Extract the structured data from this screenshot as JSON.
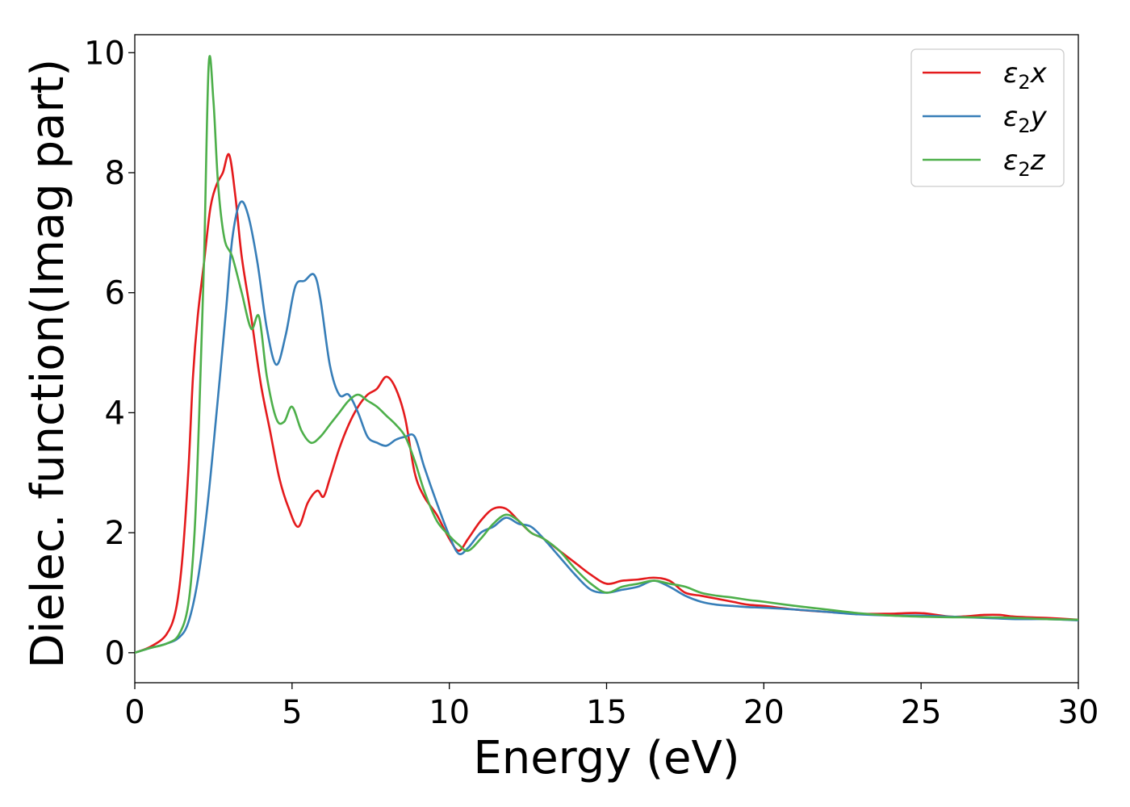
{
  "chart_data": {
    "type": "line",
    "title": "",
    "xlabel": "Energy (eV)",
    "ylabel": "Dielec. function(Imag part)",
    "xlim": [
      0,
      30
    ],
    "ylim": [
      -0.5,
      10.3
    ],
    "xticks": [
      0,
      5,
      10,
      15,
      20,
      25,
      30
    ],
    "yticks": [
      0,
      2,
      4,
      6,
      8,
      10
    ],
    "xtick_labels": [
      "0",
      "5",
      "10",
      "15",
      "20",
      "25",
      "30"
    ],
    "ytick_labels": [
      "0",
      "2",
      "4",
      "6",
      "8",
      "10"
    ],
    "grid": false,
    "legend_position": "top-right",
    "series": [
      {
        "name": "ε2x",
        "label_base": "ε",
        "label_sub": "2",
        "label_var": "x",
        "color": "#e41a1c",
        "x": [
          0,
          0.5,
          1.0,
          1.3,
          1.5,
          1.7,
          1.85,
          2.0,
          2.2,
          2.4,
          2.6,
          2.8,
          3.0,
          3.2,
          3.4,
          3.7,
          4.0,
          4.3,
          4.6,
          4.9,
          5.2,
          5.5,
          5.8,
          6.0,
          6.2,
          6.5,
          6.8,
          7.1,
          7.4,
          7.7,
          8.0,
          8.3,
          8.6,
          8.9,
          9.2,
          9.6,
          10.0,
          10.3,
          10.6,
          11.0,
          11.4,
          11.8,
          12.2,
          12.6,
          13.0,
          13.5,
          14.0,
          14.5,
          15.0,
          15.5,
          16.0,
          16.5,
          17.0,
          17.5,
          18.0,
          18.5,
          19.0,
          19.5,
          20.0,
          21.0,
          22.0,
          23.0,
          24.0,
          25.0,
          26.0,
          27.0,
          27.5,
          28.0,
          29.0,
          30.0
        ],
        "y": [
          0,
          0.1,
          0.3,
          0.7,
          1.5,
          3.0,
          4.6,
          5.6,
          6.5,
          7.4,
          7.8,
          8.0,
          8.3,
          7.6,
          6.6,
          5.6,
          4.5,
          3.7,
          2.9,
          2.4,
          2.1,
          2.5,
          2.7,
          2.6,
          2.9,
          3.4,
          3.8,
          4.1,
          4.3,
          4.4,
          4.6,
          4.4,
          3.9,
          3.0,
          2.6,
          2.3,
          1.9,
          1.7,
          1.9,
          2.2,
          2.4,
          2.4,
          2.2,
          2.0,
          1.9,
          1.7,
          1.5,
          1.3,
          1.15,
          1.2,
          1.22,
          1.25,
          1.2,
          1.0,
          0.95,
          0.9,
          0.85,
          0.8,
          0.78,
          0.72,
          0.68,
          0.65,
          0.65,
          0.66,
          0.6,
          0.63,
          0.63,
          0.6,
          0.58,
          0.55
        ]
      },
      {
        "name": "ε2y",
        "label_base": "ε",
        "label_sub": "2",
        "label_var": "y",
        "color": "#377eb8",
        "x": [
          0,
          0.5,
          1.0,
          1.4,
          1.7,
          2.0,
          2.3,
          2.6,
          2.9,
          3.1,
          3.35,
          3.6,
          3.9,
          4.2,
          4.5,
          4.8,
          5.1,
          5.4,
          5.7,
          5.9,
          6.2,
          6.5,
          6.8,
          7.1,
          7.4,
          7.7,
          8.0,
          8.3,
          8.6,
          8.9,
          9.2,
          9.6,
          10.0,
          10.3,
          10.6,
          11.0,
          11.4,
          11.8,
          12.2,
          12.6,
          13.0,
          13.5,
          14.0,
          14.5,
          15.0,
          15.5,
          16.0,
          16.5,
          17.0,
          17.5,
          18.0,
          18.5,
          19.0,
          19.5,
          20.0,
          21.0,
          22.0,
          23.0,
          24.0,
          25.0,
          26.0,
          27.0,
          28.0,
          29.0,
          30.0
        ],
        "y": [
          0,
          0.08,
          0.15,
          0.25,
          0.5,
          1.2,
          2.4,
          4.0,
          5.7,
          6.9,
          7.5,
          7.3,
          6.5,
          5.4,
          4.8,
          5.3,
          6.1,
          6.2,
          6.3,
          5.9,
          4.8,
          4.3,
          4.3,
          4.0,
          3.6,
          3.5,
          3.45,
          3.55,
          3.6,
          3.6,
          3.1,
          2.5,
          1.95,
          1.65,
          1.75,
          2.0,
          2.1,
          2.25,
          2.15,
          2.1,
          1.9,
          1.6,
          1.3,
          1.05,
          1.0,
          1.05,
          1.1,
          1.2,
          1.1,
          0.95,
          0.85,
          0.8,
          0.78,
          0.76,
          0.75,
          0.72,
          0.68,
          0.64,
          0.62,
          0.62,
          0.6,
          0.58,
          0.56,
          0.56,
          0.54
        ]
      },
      {
        "name": "ε2z",
        "label_base": "ε",
        "label_sub": "2",
        "label_var": "z",
        "color": "#4daf4a",
        "x": [
          0,
          0.5,
          1.0,
          1.4,
          1.7,
          1.9,
          2.05,
          2.2,
          2.35,
          2.5,
          2.65,
          2.85,
          3.1,
          3.4,
          3.7,
          3.95,
          4.2,
          4.5,
          4.75,
          5.0,
          5.3,
          5.6,
          5.9,
          6.2,
          6.5,
          6.8,
          7.1,
          7.4,
          7.7,
          8.0,
          8.3,
          8.6,
          8.9,
          9.2,
          9.6,
          10.0,
          10.3,
          10.6,
          11.0,
          11.4,
          11.8,
          12.2,
          12.6,
          13.0,
          13.5,
          14.0,
          14.5,
          15.0,
          15.5,
          16.0,
          16.5,
          17.0,
          17.5,
          18.0,
          18.5,
          19.0,
          19.5,
          20.0,
          21.0,
          22.0,
          23.0,
          24.0,
          25.0,
          26.0,
          27.0,
          28.0,
          29.0,
          30.0
        ],
        "y": [
          0,
          0.08,
          0.15,
          0.3,
          0.8,
          2.0,
          4.0,
          6.5,
          9.8,
          9.2,
          7.8,
          6.9,
          6.6,
          6.0,
          5.4,
          5.6,
          4.6,
          3.9,
          3.85,
          4.1,
          3.7,
          3.5,
          3.6,
          3.8,
          4.0,
          4.2,
          4.3,
          4.2,
          4.1,
          3.95,
          3.8,
          3.6,
          3.2,
          2.7,
          2.2,
          1.95,
          1.8,
          1.7,
          1.9,
          2.15,
          2.3,
          2.2,
          2.0,
          1.9,
          1.7,
          1.4,
          1.15,
          1.0,
          1.1,
          1.15,
          1.2,
          1.15,
          1.1,
          1.0,
          0.95,
          0.92,
          0.88,
          0.85,
          0.78,
          0.72,
          0.66,
          0.62,
          0.6,
          0.59,
          0.59,
          0.58,
          0.56,
          0.55
        ]
      }
    ]
  }
}
